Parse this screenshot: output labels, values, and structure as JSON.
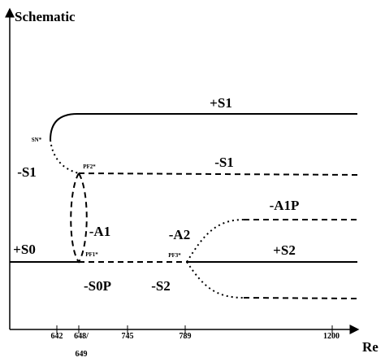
{
  "diagram": {
    "title": "Schematic",
    "x_label": "Re",
    "tick_labels": [
      "642",
      "648/",
      "649",
      "745",
      "789",
      "1200"
    ],
    "branch_labels": [
      "+S1",
      "-S1",
      "-S1",
      "-A1P",
      "-A1",
      "-A2",
      "+S0",
      "+S2",
      "-S0P",
      "-S2"
    ],
    "point_labels": [
      "SN*",
      "PF2*",
      "PF1*",
      "PF3*"
    ]
  }
}
